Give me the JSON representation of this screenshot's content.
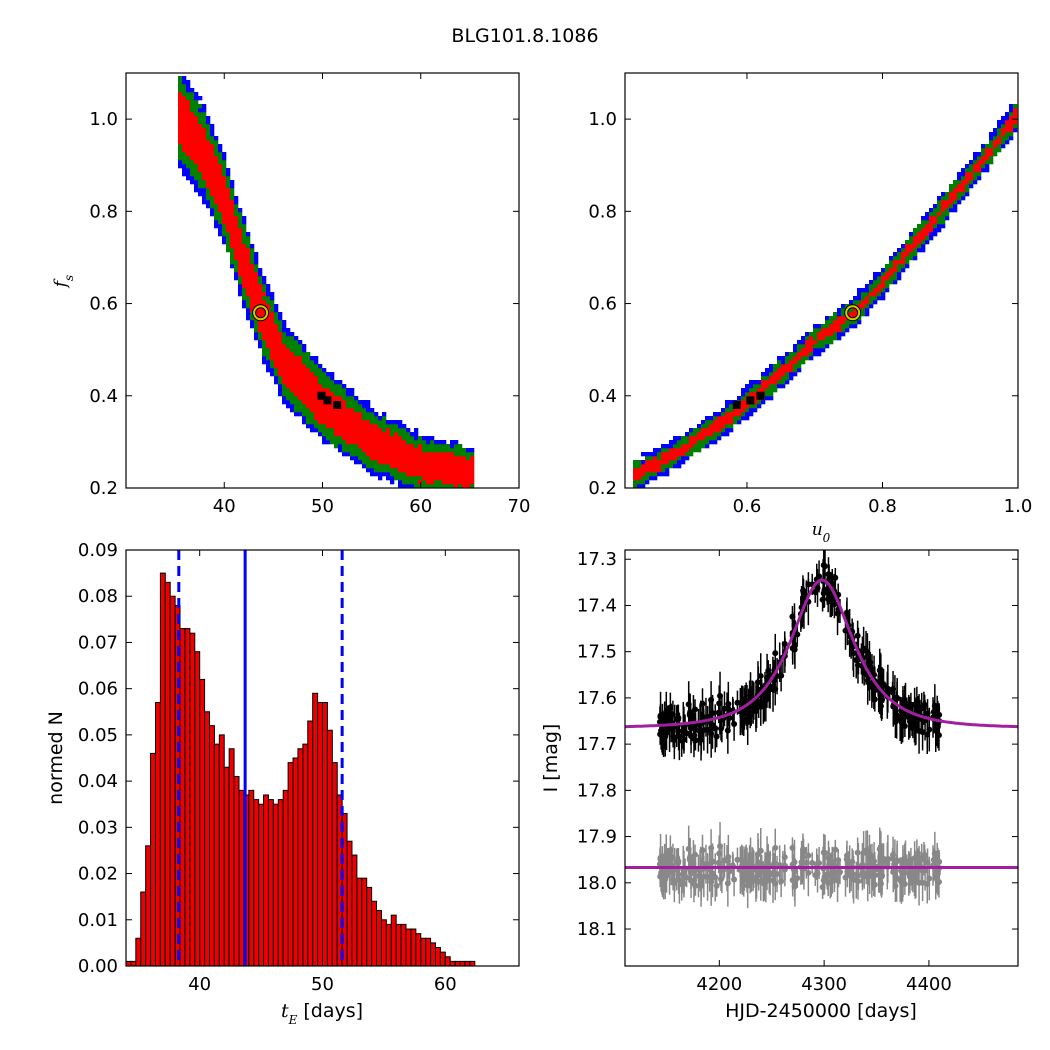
{
  "figure": {
    "title": "BLG101.8.1086"
  },
  "colors": {
    "sigma1": "#ff0000",
    "sigma2": "#008000",
    "sigma3": "#0000ff",
    "best_fit_marker": "#cccc00",
    "histogram_bar": "#ee0000",
    "median_line": "#0000ff",
    "model_curve": "#a020a0",
    "data_points": "#000000",
    "residual_points": "#888888"
  },
  "chart_data": [
    {
      "id": "tE_vs_fs",
      "type": "heatmap",
      "xlabel": "",
      "ylabel": "f_s",
      "xlim": [
        30,
        70
      ],
      "ylim": [
        0.2,
        1.1
      ],
      "xticks": [
        "40",
        "50",
        "60",
        "70"
      ],
      "yticks": [
        "0.2",
        "0.4",
        "0.6",
        "0.8",
        "1.0"
      ],
      "grid": false,
      "contour_levels": [
        "sigma1",
        "sigma2",
        "sigma3"
      ],
      "ridge": [
        [
          35.5,
          1.0
        ],
        [
          38,
          0.92
        ],
        [
          40,
          0.82
        ],
        [
          42,
          0.68
        ],
        [
          43.7,
          0.58
        ],
        [
          46,
          0.47
        ],
        [
          50,
          0.38
        ],
        [
          55,
          0.3
        ],
        [
          60,
          0.25
        ],
        [
          65,
          0.235
        ]
      ],
      "best_fit": {
        "x": 43.7,
        "y": 0.58
      },
      "min_chi2_cells": [
        [
          49.9,
          0.4
        ],
        [
          50.5,
          0.39
        ],
        [
          51.5,
          0.38
        ]
      ]
    },
    {
      "id": "u0_vs_fs",
      "type": "heatmap",
      "xlabel": "u_0",
      "ylabel": "",
      "xlim": [
        0.42,
        1.0
      ],
      "ylim": [
        0.2,
        1.1
      ],
      "xticks": [
        "0.6",
        "0.8",
        "1.0"
      ],
      "yticks": [
        "0.2",
        "0.4",
        "0.6",
        "0.8",
        "1.0"
      ],
      "grid": false,
      "contour_levels": [
        "sigma1",
        "sigma2",
        "sigma3"
      ],
      "ridge": [
        [
          0.44,
          0.23
        ],
        [
          0.5,
          0.28
        ],
        [
          0.55,
          0.33
        ],
        [
          0.6,
          0.385
        ],
        [
          0.65,
          0.45
        ],
        [
          0.7,
          0.52
        ],
        [
          0.756,
          0.58
        ],
        [
          0.8,
          0.65
        ],
        [
          0.85,
          0.74
        ],
        [
          0.9,
          0.83
        ],
        [
          0.95,
          0.92
        ],
        [
          1.0,
          1.02
        ]
      ],
      "best_fit": {
        "x": 0.756,
        "y": 0.58
      },
      "min_chi2_cells": [
        [
          0.585,
          0.38
        ],
        [
          0.605,
          0.39
        ],
        [
          0.62,
          0.4
        ]
      ]
    },
    {
      "id": "tE_histogram",
      "type": "bar",
      "xlabel": "t_E [days]",
      "ylabel": "normed N",
      "xlim": [
        34,
        66
      ],
      "ylim": [
        0,
        0.09
      ],
      "xticks": [
        "40",
        "50",
        "60"
      ],
      "yticks": [
        "0.00",
        "0.01",
        "0.02",
        "0.03",
        "0.04",
        "0.05",
        "0.06",
        "0.07",
        "0.08",
        "0.09"
      ],
      "grid": false,
      "bin_width": 0.4,
      "bin_start": 34.0,
      "values": [
        0.001,
        0.001,
        0.006,
        0.016,
        0.026,
        0.046,
        0.057,
        0.085,
        0.083,
        0.08,
        0.078,
        0.073,
        0.073,
        0.072,
        0.068,
        0.062,
        0.055,
        0.052,
        0.048,
        0.05,
        0.043,
        0.047,
        0.041,
        0.038,
        0.037,
        0.038,
        0.036,
        0.035,
        0.037,
        0.036,
        0.035,
        0.036,
        0.038,
        0.044,
        0.045,
        0.047,
        0.048,
        0.053,
        0.059,
        0.057,
        0.057,
        0.051,
        0.044,
        0.037,
        0.033,
        0.027,
        0.024,
        0.019,
        0.019,
        0.017,
        0.014,
        0.012,
        0.01,
        0.009,
        0.011,
        0.009,
        0.009,
        0.008,
        0.008,
        0.007,
        0.006,
        0.006,
        0.005,
        0.004,
        0.003,
        0.002,
        0.001,
        0.001,
        0.001,
        0.001,
        0.001
      ],
      "median": 43.7,
      "lower": 38.3,
      "upper": 51.6
    },
    {
      "id": "light_curve",
      "type": "scatter",
      "xlabel": "HJD-2450000 [days]",
      "ylabel": "I [mag]",
      "xlim": [
        4110,
        4485
      ],
      "ylim": [
        18.18,
        17.28
      ],
      "xticks": [
        "4200",
        "4300",
        "4400"
      ],
      "yticks": [
        "17.3",
        "17.4",
        "17.5",
        "17.6",
        "17.7",
        "17.8",
        "17.9",
        "18.0",
        "18.1"
      ],
      "grid": false,
      "model": {
        "t0": 4298,
        "tE": 43.7,
        "u0": 0.756,
        "fs": 0.58,
        "I_base": 17.665,
        "peak_I": 17.35
      },
      "residual_baseline": 17.967,
      "data_range": [
        4140,
        4410
      ],
      "scatter_mag": 0.03,
      "error_bar": 0.035
    }
  ]
}
